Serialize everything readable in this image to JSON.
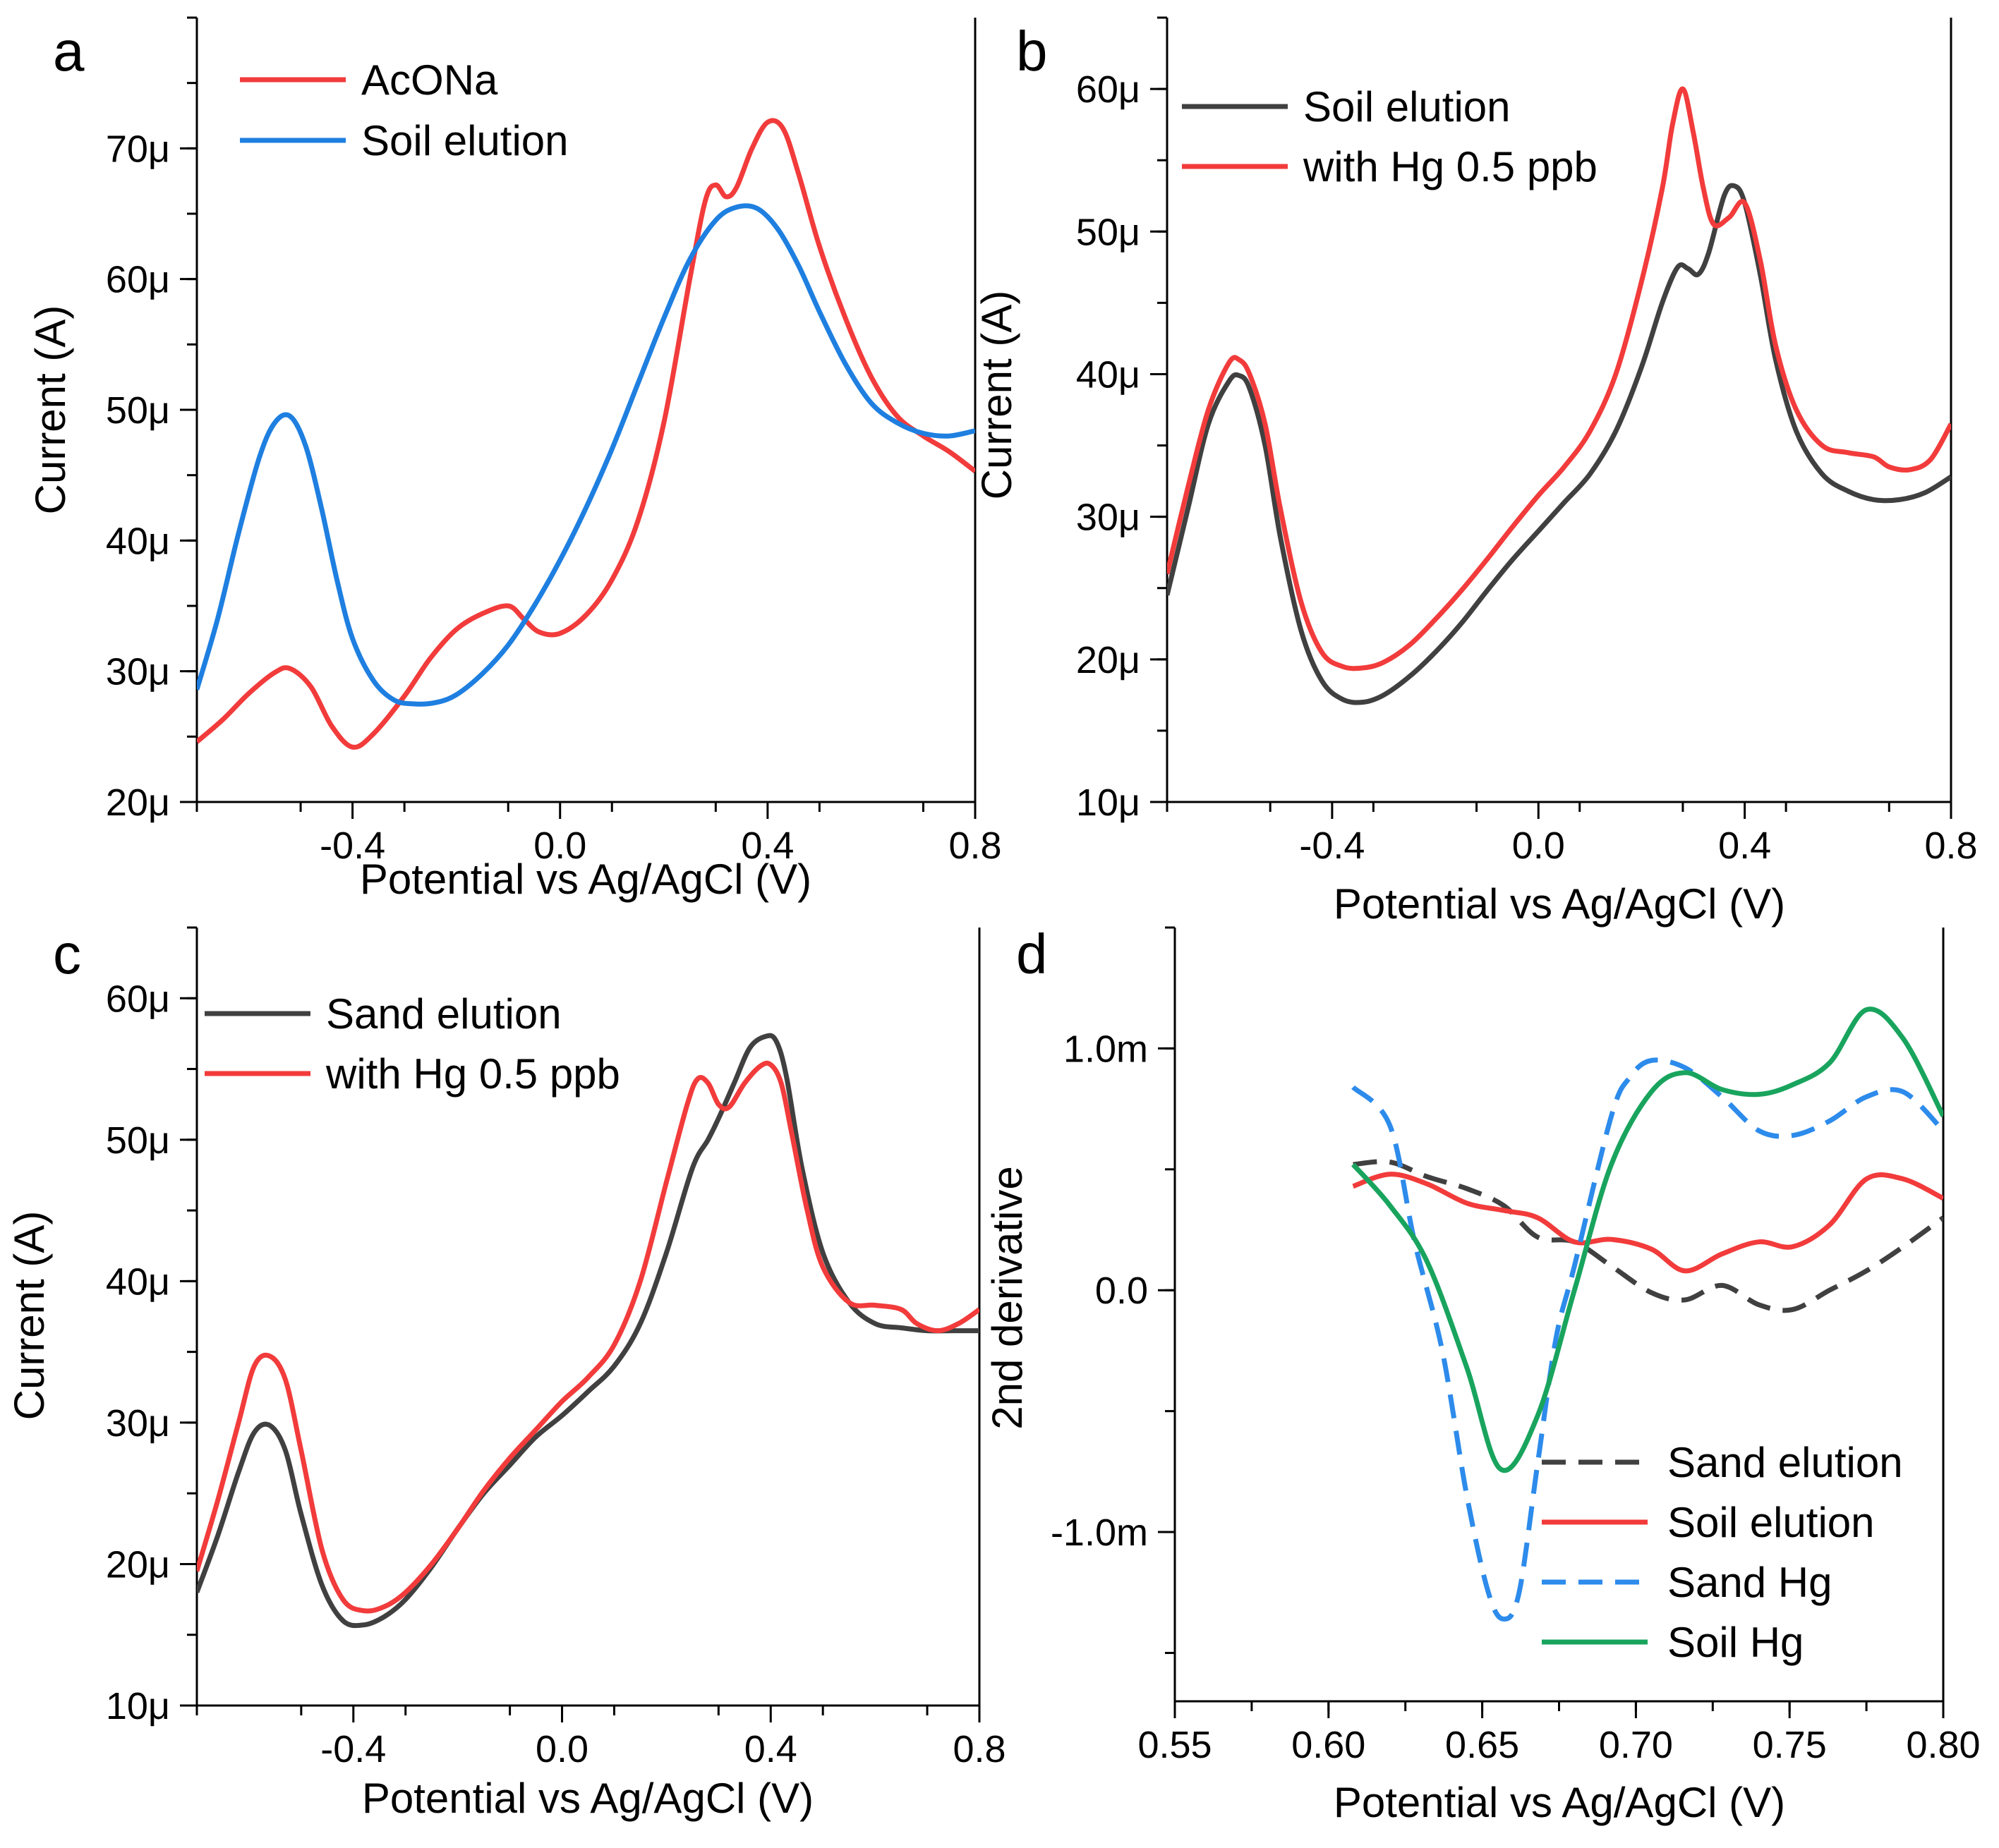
{
  "colors": {
    "red": "#F23B3B",
    "blue": "#1E7FE0",
    "gray": "#404040",
    "green": "#19A45E",
    "dashblue": "#2D8BEB"
  },
  "chart_data": [
    {
      "panel": "a",
      "type": "line",
      "xlabel": "Potential vs Ag/AgCl (V)",
      "ylabel": "Current (A)",
      "xlim": [
        -0.7,
        0.8
      ],
      "ylim": [
        20,
        80
      ],
      "xticks": [
        -0.4,
        0.0,
        0.4,
        0.8
      ],
      "xtick_labels": [
        "-0.4",
        "0.0",
        "0.4",
        "0.8"
      ],
      "yticks": [
        20,
        30,
        40,
        50,
        60,
        70
      ],
      "ytick_labels": [
        "20μ",
        "30μ",
        "40μ",
        "50μ",
        "60μ",
        "70μ"
      ],
      "legend_position": "top-left",
      "series": [
        {
          "name": "AcONa",
          "color": "red",
          "dash": false,
          "x": [
            -0.7,
            -0.65,
            -0.6,
            -0.55,
            -0.52,
            -0.48,
            -0.44,
            -0.4,
            -0.36,
            -0.3,
            -0.25,
            -0.2,
            -0.15,
            -0.1,
            -0.07,
            -0.04,
            0.0,
            0.05,
            0.1,
            0.15,
            0.2,
            0.25,
            0.28,
            0.3,
            0.32,
            0.34,
            0.37,
            0.4,
            0.43,
            0.46,
            0.5,
            0.55,
            0.6,
            0.65,
            0.7,
            0.75,
            0.8
          ],
          "y": [
            24.6,
            26.3,
            28.3,
            29.9,
            30.2,
            28.8,
            25.8,
            24.2,
            25.2,
            28.1,
            31.0,
            33.2,
            34.4,
            35.0,
            34.0,
            33.0,
            32.9,
            34.3,
            37.0,
            41.5,
            49.0,
            60.0,
            66.0,
            67.2,
            66.3,
            67.0,
            70.0,
            72.0,
            71.5,
            68.0,
            62.5,
            57.0,
            52.5,
            49.5,
            48.0,
            46.8,
            45.3
          ]
        },
        {
          "name": "Soil elution",
          "color": "blue",
          "dash": false,
          "x": [
            -0.7,
            -0.66,
            -0.62,
            -0.58,
            -0.55,
            -0.52,
            -0.49,
            -0.46,
            -0.43,
            -0.4,
            -0.36,
            -0.32,
            -0.28,
            -0.24,
            -0.2,
            -0.15,
            -0.1,
            -0.05,
            0.0,
            0.05,
            0.1,
            0.15,
            0.2,
            0.25,
            0.3,
            0.34,
            0.38,
            0.42,
            0.46,
            0.5,
            0.55,
            0.6,
            0.65,
            0.7,
            0.75,
            0.8
          ],
          "y": [
            28.6,
            34.0,
            40.5,
            46.3,
            49.0,
            49.5,
            47.2,
            42.5,
            37.0,
            32.5,
            29.3,
            27.8,
            27.5,
            27.6,
            28.2,
            29.8,
            32.0,
            35.0,
            38.5,
            42.5,
            47.0,
            52.0,
            57.0,
            61.5,
            64.5,
            65.5,
            65.4,
            63.8,
            61.0,
            57.5,
            53.5,
            50.5,
            49.0,
            48.2,
            48.0,
            48.4
          ]
        }
      ]
    },
    {
      "panel": "b",
      "type": "line",
      "xlabel": "Potential vs Ag/AgCl (V)",
      "ylabel": "Current (A)",
      "xlim": [
        -0.72,
        0.8
      ],
      "ylim": [
        10,
        65
      ],
      "xticks": [
        -0.4,
        0.0,
        0.4,
        0.8
      ],
      "xtick_labels": [
        "-0.4",
        "0.0",
        "0.4",
        "0.8"
      ],
      "yticks": [
        10,
        20,
        30,
        40,
        50,
        60
      ],
      "ytick_labels": [
        "10μ",
        "20μ",
        "30μ",
        "40μ",
        "50μ",
        "60μ"
      ],
      "legend_position": "top-left",
      "series": [
        {
          "name": "Soil elution",
          "color": "gray",
          "dash": false,
          "x": [
            -0.72,
            -0.68,
            -0.64,
            -0.6,
            -0.58,
            -0.56,
            -0.53,
            -0.5,
            -0.46,
            -0.42,
            -0.38,
            -0.34,
            -0.3,
            -0.25,
            -0.2,
            -0.15,
            -0.1,
            -0.05,
            0.0,
            0.05,
            0.1,
            0.15,
            0.2,
            0.24,
            0.27,
            0.29,
            0.31,
            0.33,
            0.36,
            0.38,
            0.4,
            0.43,
            0.46,
            0.5,
            0.55,
            0.6,
            0.65,
            0.7,
            0.75,
            0.8
          ],
          "y": [
            24.5,
            30.5,
            36.5,
            39.5,
            39.9,
            39.0,
            35.0,
            28.5,
            22.0,
            18.5,
            17.2,
            17.0,
            17.5,
            18.8,
            20.5,
            22.5,
            24.8,
            27.0,
            29.0,
            31.0,
            33.0,
            36.0,
            40.5,
            45.0,
            47.5,
            47.4,
            47.0,
            48.5,
            52.5,
            53.2,
            52.0,
            47.0,
            41.0,
            36.0,
            33.0,
            31.8,
            31.2,
            31.2,
            31.7,
            32.8
          ]
        },
        {
          "name": "with Hg 0.5 ppb",
          "color": "red",
          "dash": false,
          "x": [
            -0.72,
            -0.68,
            -0.64,
            -0.6,
            -0.58,
            -0.56,
            -0.53,
            -0.5,
            -0.46,
            -0.42,
            -0.38,
            -0.34,
            -0.3,
            -0.25,
            -0.2,
            -0.15,
            -0.1,
            -0.05,
            0.0,
            0.05,
            0.1,
            0.15,
            0.2,
            0.24,
            0.26,
            0.28,
            0.3,
            0.32,
            0.34,
            0.37,
            0.4,
            0.43,
            0.46,
            0.5,
            0.55,
            0.6,
            0.65,
            0.68,
            0.72,
            0.76,
            0.8
          ],
          "y": [
            26.0,
            32.0,
            37.5,
            40.8,
            41.0,
            40.0,
            36.5,
            30.5,
            24.0,
            20.5,
            19.5,
            19.4,
            19.8,
            21.0,
            22.8,
            24.8,
            27.0,
            29.3,
            31.5,
            33.5,
            36.0,
            40.0,
            46.5,
            53.0,
            57.5,
            60.0,
            57.0,
            53.0,
            50.5,
            51.0,
            52.0,
            48.0,
            42.0,
            37.5,
            35.0,
            34.5,
            34.2,
            33.5,
            33.3,
            34.0,
            36.5
          ]
        }
      ]
    },
    {
      "panel": "c",
      "type": "line",
      "xlabel": "Potential vs Ag/AgCl (V)",
      "ylabel": "Current (A)",
      "xlim": [
        -0.7,
        0.8
      ],
      "ylim": [
        10,
        65
      ],
      "xticks": [
        -0.4,
        0.0,
        0.4,
        0.8
      ],
      "xtick_labels": [
        "-0.4",
        "0.0",
        "0.4",
        "0.8"
      ],
      "yticks": [
        10,
        20,
        30,
        40,
        50,
        60
      ],
      "ytick_labels": [
        "10μ",
        "20μ",
        "30μ",
        "40μ",
        "50μ",
        "60μ"
      ],
      "legend_position": "top-left",
      "series": [
        {
          "name": "Sand elution",
          "color": "gray",
          "dash": false,
          "x": [
            -0.7,
            -0.66,
            -0.62,
            -0.59,
            -0.56,
            -0.53,
            -0.5,
            -0.46,
            -0.42,
            -0.38,
            -0.34,
            -0.3,
            -0.25,
            -0.2,
            -0.15,
            -0.1,
            -0.05,
            0.0,
            0.05,
            0.1,
            0.15,
            0.2,
            0.25,
            0.28,
            0.3,
            0.33,
            0.36,
            0.39,
            0.41,
            0.43,
            0.46,
            0.5,
            0.55,
            0.6,
            0.65,
            0.7,
            0.75,
            0.8
          ],
          "y": [
            18.0,
            22.0,
            26.5,
            29.3,
            29.8,
            28.0,
            23.5,
            18.5,
            16.0,
            15.7,
            16.3,
            17.5,
            19.8,
            22.5,
            25.0,
            27.0,
            29.0,
            30.5,
            32.2,
            34.0,
            37.0,
            42.0,
            48.0,
            50.0,
            51.5,
            54.0,
            56.5,
            57.3,
            57.0,
            54.5,
            48.0,
            42.0,
            38.5,
            37.0,
            36.7,
            36.5,
            36.5,
            36.5
          ]
        },
        {
          "name": "with Hg 0.5 ppb",
          "color": "red",
          "dash": false,
          "x": [
            -0.7,
            -0.66,
            -0.62,
            -0.59,
            -0.56,
            -0.53,
            -0.5,
            -0.46,
            -0.42,
            -0.38,
            -0.34,
            -0.3,
            -0.25,
            -0.2,
            -0.15,
            -0.1,
            -0.05,
            0.0,
            0.05,
            0.1,
            0.15,
            0.2,
            0.24,
            0.26,
            0.28,
            0.3,
            0.32,
            0.35,
            0.38,
            0.4,
            0.42,
            0.44,
            0.47,
            0.5,
            0.55,
            0.6,
            0.65,
            0.68,
            0.72,
            0.76,
            0.8
          ],
          "y": [
            19.5,
            24.5,
            30.0,
            34.0,
            34.7,
            33.0,
            28.0,
            21.0,
            17.5,
            16.7,
            17.0,
            18.0,
            20.0,
            22.5,
            25.2,
            27.5,
            29.5,
            31.5,
            33.2,
            35.5,
            40.0,
            47.0,
            52.5,
            54.3,
            54.0,
            52.5,
            52.3,
            54.0,
            55.2,
            55.3,
            54.0,
            50.5,
            45.0,
            41.0,
            38.5,
            38.3,
            38.0,
            37.0,
            36.5,
            37.0,
            38.0
          ]
        }
      ]
    },
    {
      "panel": "d",
      "type": "line",
      "xlabel": "Potential vs Ag/AgCl (V)",
      "ylabel": "2nd derivative",
      "xlim": [
        0.55,
        0.8
      ],
      "ylim": [
        -1.7,
        1.5
      ],
      "xticks": [
        0.55,
        0.6,
        0.65,
        0.7,
        0.75,
        0.8
      ],
      "xtick_labels": [
        "0.55",
        "0.60",
        "0.65",
        "0.70",
        "0.75",
        "0.80"
      ],
      "yticks": [
        -1.0,
        0.0,
        1.0
      ],
      "ytick_labels": [
        "-1.0m",
        "0.0",
        "1.0m"
      ],
      "legend_position": "bottom-right",
      "series": [
        {
          "name": "Sand elution",
          "color": "gray",
          "dash": true,
          "x": [
            0.608,
            0.62,
            0.632,
            0.645,
            0.657,
            0.668,
            0.68,
            0.692,
            0.705,
            0.716,
            0.728,
            0.74,
            0.751,
            0.763,
            0.775,
            0.787,
            0.8
          ],
          "y": [
            0.52,
            0.53,
            0.47,
            0.42,
            0.35,
            0.22,
            0.2,
            0.1,
            -0.01,
            -0.04,
            0.02,
            -0.06,
            -0.08,
            0.0,
            0.08,
            0.18,
            0.3
          ]
        },
        {
          "name": "Soil elution",
          "color": "red",
          "dash": false,
          "x": [
            0.608,
            0.62,
            0.632,
            0.645,
            0.657,
            0.668,
            0.68,
            0.692,
            0.705,
            0.716,
            0.728,
            0.74,
            0.751,
            0.763,
            0.775,
            0.787,
            0.8
          ],
          "y": [
            0.43,
            0.48,
            0.44,
            0.36,
            0.33,
            0.3,
            0.2,
            0.21,
            0.17,
            0.08,
            0.15,
            0.2,
            0.18,
            0.27,
            0.46,
            0.46,
            0.38
          ]
        },
        {
          "name": "Sand Hg",
          "color": "dashblue",
          "dash": true,
          "x": [
            0.608,
            0.62,
            0.628,
            0.637,
            0.645,
            0.652,
            0.657,
            0.662,
            0.668,
            0.674,
            0.68,
            0.692,
            0.698,
            0.705,
            0.716,
            0.728,
            0.74,
            0.751,
            0.763,
            0.775,
            0.787,
            0.8
          ],
          "y": [
            0.84,
            0.68,
            0.2,
            -0.25,
            -0.85,
            -1.25,
            -1.36,
            -1.25,
            -0.72,
            -0.2,
            0.1,
            0.72,
            0.88,
            0.95,
            0.92,
            0.8,
            0.66,
            0.64,
            0.7,
            0.8,
            0.82,
            0.66
          ]
        },
        {
          "name": "Soil Hg",
          "color": "green",
          "dash": false,
          "x": [
            0.608,
            0.62,
            0.632,
            0.645,
            0.656,
            0.668,
            0.68,
            0.692,
            0.705,
            0.716,
            0.728,
            0.74,
            0.751,
            0.763,
            0.775,
            0.787,
            0.8
          ],
          "y": [
            0.52,
            0.35,
            0.12,
            -0.32,
            -0.74,
            -0.52,
            0.0,
            0.52,
            0.82,
            0.9,
            0.83,
            0.81,
            0.85,
            0.94,
            1.16,
            1.04,
            0.72
          ]
        }
      ]
    }
  ]
}
